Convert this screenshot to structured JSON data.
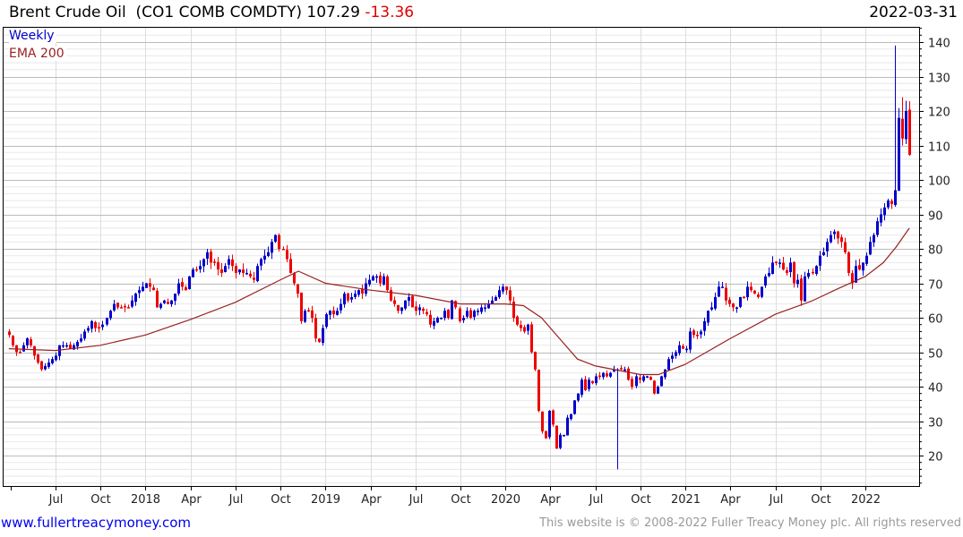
{
  "header": {
    "name": "Brent Crude Oil",
    "ticker": "(CO1 COMB COMDTY)",
    "price": "107.29",
    "change": "-13.36",
    "date": "2022-03-31"
  },
  "footer": {
    "link": "www.fullertreacymoney.com",
    "copyright": "This website is © 2008-2022 Fuller Treacy Money plc. All rights reserved"
  },
  "colors": {
    "up": "#0000cc",
    "down": "#ee0000",
    "ema": "#992222",
    "major_grid": "#bbbbbb",
    "minor_grid": "#e8e8e8"
  },
  "chart_data": {
    "type": "candlestick",
    "title": "Brent Crude Oil (CO1 COMB COMDTY) 107.29 -13.36",
    "legend": [
      {
        "label": "Weekly",
        "color": "#0000cc"
      },
      {
        "label": "EMA 200",
        "color": "#992222"
      }
    ],
    "legend_placement": "top-left",
    "ylim": [
      11,
      144
    ],
    "y_ticks": [
      20,
      30,
      40,
      50,
      60,
      70,
      80,
      90,
      100,
      110,
      120,
      130,
      140
    ],
    "x_range_years": [
      2017.241,
      2022.244
    ],
    "x_ticks": [
      {
        "label": "",
        "year": 2017.25
      },
      {
        "label": "Jul",
        "year": 2017.5
      },
      {
        "label": "Oct",
        "year": 2017.75
      },
      {
        "label": "2018",
        "year": 2018.0
      },
      {
        "label": "Apr",
        "year": 2018.25
      },
      {
        "label": "Jul",
        "year": 2018.5
      },
      {
        "label": "Oct",
        "year": 2018.75
      },
      {
        "label": "2019",
        "year": 2019.0
      },
      {
        "label": "Apr",
        "year": 2019.25
      },
      {
        "label": "Jul",
        "year": 2019.5
      },
      {
        "label": "Oct",
        "year": 2019.75
      },
      {
        "label": "2020",
        "year": 2020.0
      },
      {
        "label": "Apr",
        "year": 2020.25
      },
      {
        "label": "Jul",
        "year": 2020.5
      },
      {
        "label": "Oct",
        "year": 2020.75
      },
      {
        "label": "2021",
        "year": 2021.0
      },
      {
        "label": "Apr",
        "year": 2021.25
      },
      {
        "label": "Jul",
        "year": 2021.5
      },
      {
        "label": "Oct",
        "year": 2021.75
      },
      {
        "label": "2022",
        "year": 2022.0
      }
    ],
    "weekly_close": [
      55,
      52,
      50,
      50,
      52,
      54,
      52,
      49,
      47,
      45,
      46,
      47,
      48,
      49,
      52,
      52,
      52,
      51,
      52,
      53,
      54,
      56,
      57,
      59,
      57,
      57,
      58,
      60,
      62,
      64,
      63,
      63,
      63,
      63,
      65,
      67,
      68,
      69,
      70,
      69,
      68,
      63,
      64,
      65,
      64,
      65,
      67,
      70,
      69,
      68,
      72,
      74,
      74,
      75,
      77,
      79,
      76,
      76,
      74,
      73,
      75,
      77,
      75,
      73,
      74,
      73,
      73,
      72,
      71,
      75,
      77,
      78,
      79,
      82,
      84,
      80,
      80,
      77,
      73,
      70,
      67,
      59,
      62,
      62,
      60,
      54,
      53,
      57,
      61,
      62,
      61,
      62,
      64,
      67,
      65,
      66,
      67,
      68,
      67,
      70,
      71,
      72,
      72,
      70,
      72,
      68,
      65,
      64,
      62,
      63,
      65,
      66,
      63,
      62,
      63,
      62,
      61,
      58,
      59,
      60,
      60,
      62,
      60,
      65,
      63,
      59,
      60,
      62,
      60,
      62,
      62,
      63,
      63,
      64,
      65,
      66,
      68,
      69,
      68,
      65,
      60,
      58,
      57,
      56,
      58,
      50,
      45,
      33,
      27,
      25,
      33,
      29,
      22,
      26,
      26,
      31,
      32,
      36,
      38,
      42,
      39,
      42,
      41,
      43,
      43,
      44,
      43,
      44,
      45,
      45,
      45,
      45,
      42,
      40,
      43,
      42,
      43,
      43,
      42,
      38,
      40,
      43,
      45,
      48,
      49,
      50,
      52,
      51,
      51,
      56,
      55,
      55,
      56,
      59,
      62,
      63,
      66,
      69,
      69,
      65,
      64,
      63,
      63,
      66,
      66,
      69,
      68,
      67,
      66,
      69,
      72,
      73,
      76,
      76,
      76,
      74,
      73,
      76,
      70,
      71,
      65,
      72,
      73,
      73,
      75,
      78,
      79,
      82,
      84,
      85,
      83,
      82,
      79,
      73,
      70,
      75,
      74,
      76,
      78,
      82,
      84,
      88,
      90,
      92,
      94,
      93,
      97,
      118,
      112,
      120,
      107.29
    ],
    "wick_extremes": [
      {
        "week_index": 169,
        "low": 16
      },
      {
        "week_index": 246,
        "high": 139
      },
      {
        "week_index": 247,
        "low": 97
      },
      {
        "week_index": 248,
        "high": 124
      }
    ],
    "ema_200": [
      [
        2017.24,
        51
      ],
      [
        2017.5,
        50.5
      ],
      [
        2017.75,
        52
      ],
      [
        2018.0,
        55
      ],
      [
        2018.25,
        59.5
      ],
      [
        2018.5,
        64.5
      ],
      [
        2018.75,
        71
      ],
      [
        2018.85,
        73.5
      ],
      [
        2019.0,
        70
      ],
      [
        2019.25,
        68
      ],
      [
        2019.5,
        66.5
      ],
      [
        2019.75,
        64
      ],
      [
        2020.0,
        64
      ],
      [
        2020.1,
        63.5
      ],
      [
        2020.2,
        60
      ],
      [
        2020.3,
        54
      ],
      [
        2020.4,
        48
      ],
      [
        2020.5,
        46
      ],
      [
        2020.75,
        43.5
      ],
      [
        2020.85,
        43.5
      ],
      [
        2021.0,
        46.5
      ],
      [
        2021.25,
        54
      ],
      [
        2021.5,
        61
      ],
      [
        2021.7,
        64.8
      ],
      [
        2021.85,
        68.5
      ],
      [
        2022.0,
        72
      ],
      [
        2022.1,
        76
      ],
      [
        2022.17,
        80.5
      ],
      [
        2022.244,
        86
      ]
    ]
  }
}
